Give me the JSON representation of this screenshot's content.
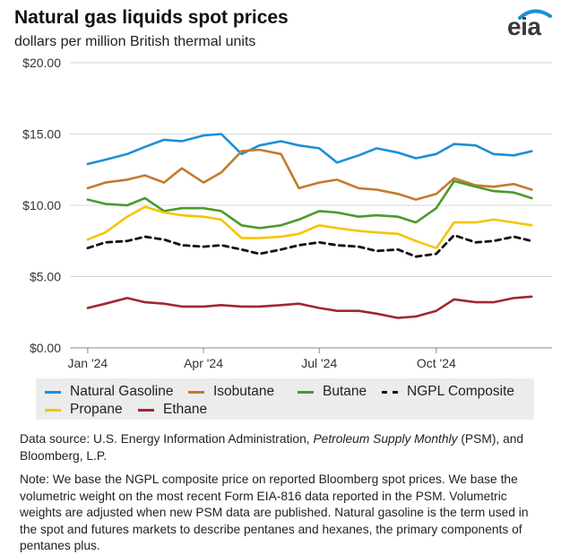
{
  "header": {
    "title": "Natural gas liquids spot prices",
    "subtitle": "dollars per million British thermal units",
    "logo_text": "eia"
  },
  "legend": [
    {
      "label": "Natural Gasoline",
      "color": "#1d8fd6",
      "dashed": false
    },
    {
      "label": "Isobutane",
      "color": "#c47a2c",
      "dashed": false
    },
    {
      "label": "Butane",
      "color": "#4b9a2d",
      "dashed": false
    },
    {
      "label": "NGPL Composite",
      "color": "#111111",
      "dashed": true
    },
    {
      "label": "Propane",
      "color": "#f5c400",
      "dashed": false
    },
    {
      "label": "Ethane",
      "color": "#a3272e",
      "dashed": false
    }
  ],
  "footer": {
    "source_prefix": "Data source: U.S. Energy Information Administration, ",
    "source_italic": "Petroleum Supply Monthly",
    "source_suffix": " (PSM), and Bloomberg, L.P.",
    "note": "Note: We base the NGPL composite price on reported Bloomberg spot prices. We base the volumetric weight on the most recent Form EIA-816 data reported in the PSM. Volumetric weights are adjusted when new PSM data are published. Natural gasoline is the term used in the spot and futures markets to describe pentanes and hexanes, the primary components of pentanes plus."
  },
  "chart_data": {
    "type": "line",
    "x": [
      "2024-01-01",
      "2024-01-15",
      "2024-02-01",
      "2024-02-15",
      "2024-03-01",
      "2024-03-15",
      "2024-04-01",
      "2024-04-15",
      "2024-05-01",
      "2024-05-15",
      "2024-06-01",
      "2024-06-15",
      "2024-07-01",
      "2024-07-15",
      "2024-08-01",
      "2024-08-15",
      "2024-09-01",
      "2024-09-15",
      "2024-10-01",
      "2024-10-15",
      "2024-11-01",
      "2024-11-15",
      "2024-12-01",
      "2024-12-15"
    ],
    "x_start": "2023-12-18",
    "x_end": "2024-12-31",
    "xticks": [
      {
        "date": "2024-01-01",
        "label": "Jan '24"
      },
      {
        "date": "2024-04-01",
        "label": "Apr '24"
      },
      {
        "date": "2024-07-01",
        "label": "Jul '24"
      },
      {
        "date": "2024-10-01",
        "label": "Oct '24"
      }
    ],
    "yticks": [
      0,
      5,
      10,
      15,
      20
    ],
    "ytick_labels": [
      "$0.00",
      "$5.00",
      "$10.00",
      "$15.00",
      "$20.00"
    ],
    "ylim": [
      0,
      20
    ],
    "grid": true,
    "legend_position": "bottom",
    "series": [
      {
        "name": "Natural Gasoline",
        "color": "#1d8fd6",
        "dashed": false,
        "values": [
          12.9,
          13.2,
          13.6,
          14.1,
          14.6,
          14.5,
          14.9,
          15.0,
          13.6,
          14.2,
          14.5,
          14.2,
          14.0,
          13.0,
          13.5,
          14.0,
          13.7,
          13.3,
          13.6,
          14.3,
          14.2,
          13.6,
          13.5,
          13.8
        ]
      },
      {
        "name": "Isobutane",
        "color": "#c47a2c",
        "dashed": false,
        "values": [
          11.2,
          11.6,
          11.8,
          12.1,
          11.6,
          12.6,
          11.6,
          12.3,
          13.8,
          13.9,
          13.6,
          11.2,
          11.6,
          11.8,
          11.2,
          11.1,
          10.8,
          10.4,
          10.8,
          11.9,
          11.4,
          11.3,
          11.5,
          11.1
        ]
      },
      {
        "name": "Butane",
        "color": "#4b9a2d",
        "dashed": false,
        "values": [
          10.4,
          10.1,
          10.0,
          10.5,
          9.6,
          9.8,
          9.8,
          9.6,
          8.6,
          8.4,
          8.6,
          9.0,
          9.6,
          9.5,
          9.2,
          9.3,
          9.2,
          8.8,
          9.8,
          11.7,
          11.3,
          11.0,
          10.9,
          10.5
        ]
      },
      {
        "name": "NGPL Composite",
        "color": "#111111",
        "dashed": true,
        "values": [
          7.0,
          7.4,
          7.5,
          7.8,
          7.6,
          7.2,
          7.1,
          7.2,
          6.9,
          6.6,
          6.9,
          7.2,
          7.4,
          7.2,
          7.1,
          6.8,
          6.9,
          6.4,
          6.6,
          7.9,
          7.4,
          7.5,
          7.8,
          7.5
        ]
      },
      {
        "name": "Propane",
        "color": "#f5c400",
        "dashed": false,
        "values": [
          7.6,
          8.1,
          9.2,
          9.9,
          9.5,
          9.3,
          9.2,
          9.0,
          7.7,
          7.7,
          7.8,
          8.0,
          8.6,
          8.4,
          8.2,
          8.1,
          8.0,
          7.5,
          7.0,
          8.8,
          8.8,
          9.0,
          8.8,
          8.6
        ]
      },
      {
        "name": "Ethane",
        "color": "#a3272e",
        "dashed": false,
        "values": [
          2.8,
          3.1,
          3.5,
          3.2,
          3.1,
          2.9,
          2.9,
          3.0,
          2.9,
          2.9,
          3.0,
          3.1,
          2.8,
          2.6,
          2.6,
          2.4,
          2.1,
          2.2,
          2.6,
          3.4,
          3.2,
          3.2,
          3.5,
          3.6
        ]
      }
    ]
  }
}
